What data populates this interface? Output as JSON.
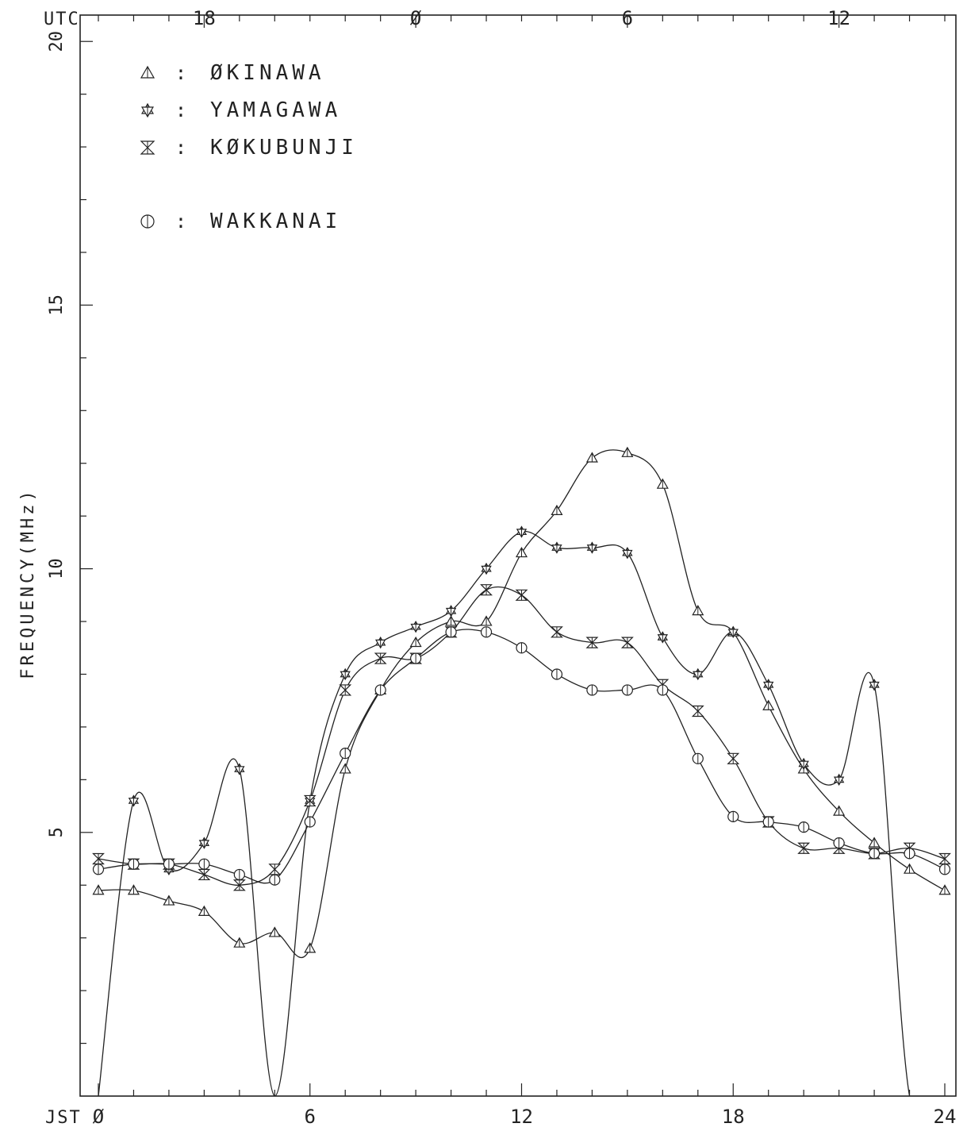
{
  "chart_data": {
    "type": "line",
    "ylabel": "FREQUENCY(MHz)",
    "top_axis_label": "UTC",
    "bottom_axis_label": "JST",
    "x_range": [
      0,
      24
    ],
    "ylim": [
      0,
      20.5
    ],
    "y_ticks": [
      "5",
      "10",
      "15",
      "20"
    ],
    "y_tick_values": [
      5,
      10,
      15,
      20
    ],
    "x_tick_labels": [
      "Ø",
      "6",
      "12",
      "18",
      "24"
    ],
    "x_tick_values": [
      0,
      6,
      12,
      18,
      24
    ],
    "utc_tick_labels": [
      "18",
      "Ø",
      "6",
      "12"
    ],
    "utc_tick_jst_values": [
      3,
      9,
      15,
      21
    ],
    "grid": false,
    "legend_position": "top-left",
    "series": [
      {
        "name": "ØKINAWA",
        "marker": "triangle",
        "x": [
          0,
          1,
          2,
          3,
          4,
          5,
          6,
          7,
          8,
          9,
          10,
          11,
          12,
          13,
          14,
          15,
          16,
          17,
          18,
          19,
          20,
          21,
          22,
          23,
          24
        ],
        "y": [
          3.9,
          3.9,
          3.7,
          3.5,
          2.9,
          3.1,
          2.8,
          6.2,
          7.7,
          8.6,
          9.0,
          9.0,
          10.3,
          11.1,
          12.1,
          12.2,
          11.6,
          9.2,
          8.8,
          7.4,
          6.2,
          5.4,
          4.8,
          4.3,
          3.9
        ]
      },
      {
        "name": "YAMAGAWA",
        "marker": "star",
        "x": [
          0,
          1,
          2,
          3,
          4,
          5,
          6,
          7,
          8,
          9,
          10,
          11,
          12,
          13,
          14,
          15,
          16,
          17,
          18,
          19,
          20,
          21,
          22,
          23,
          24
        ],
        "y": [
          0,
          5.6,
          4.3,
          4.8,
          6.2,
          0,
          5.6,
          8.0,
          8.6,
          8.9,
          9.2,
          10.0,
          10.7,
          10.4,
          10.4,
          10.3,
          8.7,
          8.0,
          8.8,
          7.8,
          6.3,
          6.0,
          7.8,
          0,
          0
        ]
      },
      {
        "name": "KØKUBUNJI",
        "marker": "hourglass",
        "x": [
          0,
          1,
          2,
          3,
          4,
          5,
          6,
          7,
          8,
          9,
          10,
          11,
          12,
          13,
          14,
          15,
          16,
          17,
          18,
          19,
          20,
          21,
          22,
          23,
          24
        ],
        "y": [
          4.5,
          4.4,
          4.4,
          4.2,
          4.0,
          4.3,
          5.6,
          7.7,
          8.3,
          8.3,
          8.8,
          9.6,
          9.5,
          8.8,
          8.6,
          8.6,
          7.8,
          7.3,
          6.4,
          5.2,
          4.7,
          4.7,
          4.6,
          4.7,
          4.5
        ]
      },
      {
        "name": "WAKKANAI",
        "marker": "circle",
        "x": [
          0,
          1,
          2,
          3,
          4,
          5,
          6,
          7,
          8,
          9,
          10,
          11,
          12,
          13,
          14,
          15,
          16,
          17,
          18,
          19,
          20,
          21,
          22,
          23,
          24
        ],
        "y": [
          4.3,
          4.4,
          4.4,
          4.4,
          4.2,
          4.1,
          5.2,
          6.5,
          7.7,
          8.3,
          8.8,
          8.8,
          8.5,
          8.0,
          7.7,
          7.7,
          7.7,
          6.4,
          5.3,
          5.2,
          5.1,
          4.8,
          4.6,
          4.6,
          4.3
        ]
      }
    ]
  }
}
